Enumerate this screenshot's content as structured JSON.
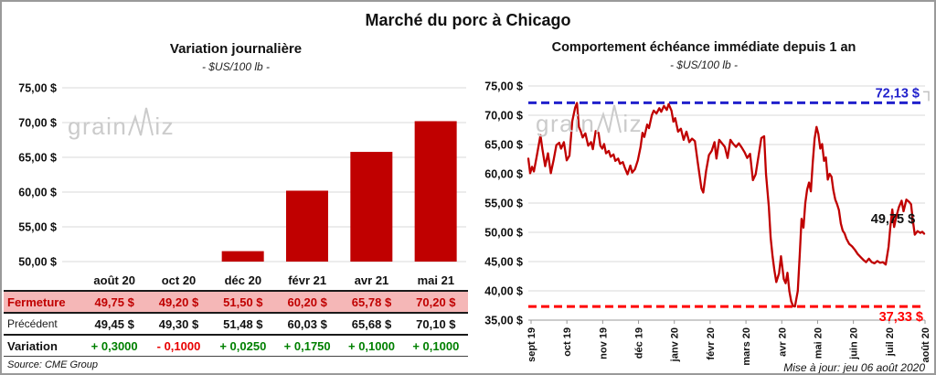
{
  "title": "Marché du porc à Chicago",
  "source": "Source: CME Group",
  "updated": "Mise à jour: jeu 06 août 2020",
  "watermark": {
    "part1": "grain",
    "part2": "iz"
  },
  "colors": {
    "bar": "#C00000",
    "line": "#C00000",
    "high_dash": "#2121CC",
    "low_dash": "#FF0000",
    "grid": "#D8D8D8",
    "axis": "#9a9a9a",
    "pink_row": "#F5B7B7",
    "fermeture_text": "#C00000",
    "positive": "#008000",
    "negative": "#E80000",
    "watermark": "#CBCBCB",
    "text": "#111111"
  },
  "left_table": {
    "col_headers": [
      "août 20",
      "oct 20",
      "déc 20",
      "févr 21",
      "avr 21",
      "mai 21"
    ],
    "rows": [
      {
        "key": "fermeture",
        "label": "Fermeture",
        "values": [
          "49,75 $",
          "49,20 $",
          "51,50 $",
          "60,20 $",
          "65,78 $",
          "70,20 $"
        ]
      },
      {
        "key": "precedent",
        "label": "Précédent",
        "values": [
          "49,45 $",
          "49,30 $",
          "51,48 $",
          "60,03 $",
          "65,68 $",
          "70,10 $"
        ]
      },
      {
        "key": "variation",
        "label": "Variation",
        "values": [
          "+ 0,3000",
          "- 0,1000",
          "+ 0,0250",
          "+ 0,1750",
          "+ 0,1000",
          "+ 0,1000"
        ],
        "value_colors": [
          "positive",
          "negative",
          "positive",
          "positive",
          "positive",
          "positive"
        ]
      }
    ]
  },
  "chart_data": [
    {
      "type": "bar",
      "title": "Variation journalière",
      "subtitle": "- $US/100 lb -",
      "categories": [
        "août 20",
        "oct 20",
        "déc 20",
        "févr 21",
        "avr 21",
        "mai 21"
      ],
      "values": [
        49.75,
        49.2,
        51.5,
        60.2,
        65.78,
        70.2
      ],
      "ylim": [
        50,
        75
      ],
      "yticks": [
        75,
        70,
        65,
        60,
        55,
        50
      ],
      "ytick_labels": [
        "75,00 $",
        "70,00 $",
        "65,00 $",
        "60,00 $",
        "55,00 $",
        "50,00 $"
      ],
      "grid": true,
      "legend": "none"
    },
    {
      "type": "line",
      "title": "Comportement échéance immédiate depuis 1 an",
      "subtitle": "- $US/100 lb -",
      "x_labels": [
        "sept 19",
        "oct 19",
        "nov 19",
        "déc 19",
        "janv 20",
        "févr 20",
        "mars 20",
        "avr 20",
        "mai 20",
        "juin 20",
        "juil 20",
        "août 20"
      ],
      "ylim": [
        35,
        75
      ],
      "yticks": [
        75,
        70,
        65,
        60,
        55,
        50,
        45,
        40,
        35
      ],
      "ytick_labels": [
        "75,00 $",
        "70,00 $",
        "65,00 $",
        "60,00 $",
        "55,00 $",
        "50,00 $",
        "45,00 $",
        "40,00 $",
        "35,00 $"
      ],
      "grid": true,
      "legend": "none",
      "annotations": {
        "high": {
          "value": 72.13,
          "label": "72,13 $"
        },
        "low": {
          "value": 37.33,
          "label": "37,33 $"
        },
        "last": {
          "value": 49.75,
          "label": "49,75 $"
        }
      },
      "points": [
        [
          0,
          62.6
        ],
        [
          2,
          60.1
        ],
        [
          4,
          61.2
        ],
        [
          6,
          60.4
        ],
        [
          9,
          63.0
        ],
        [
          13,
          66.6
        ],
        [
          15,
          64.2
        ],
        [
          18,
          61.3
        ],
        [
          21,
          63.5
        ],
        [
          24,
          60.1
        ],
        [
          27,
          62.3
        ],
        [
          30,
          64.9
        ],
        [
          33,
          65.3
        ],
        [
          35,
          64.3
        ],
        [
          38,
          65.4
        ],
        [
          41,
          62.3
        ],
        [
          44,
          63.1
        ],
        [
          47,
          69.0
        ],
        [
          50,
          71.3
        ],
        [
          52,
          72.1
        ],
        [
          54,
          68.0
        ],
        [
          56,
          67.3
        ],
        [
          58,
          66.2
        ],
        [
          61,
          66.9
        ],
        [
          64,
          64.8
        ],
        [
          67,
          65.4
        ],
        [
          69,
          64.2
        ],
        [
          72,
          67.3
        ],
        [
          75,
          67.0
        ],
        [
          77,
          64.8
        ],
        [
          79,
          64.3
        ],
        [
          81,
          65.1
        ],
        [
          83,
          63.5
        ],
        [
          86,
          63.9
        ],
        [
          88,
          62.9
        ],
        [
          91,
          63.3
        ],
        [
          93,
          62.2
        ],
        [
          96,
          62.6
        ],
        [
          98,
          61.7
        ],
        [
          101,
          62.0
        ],
        [
          103,
          61.1
        ],
        [
          106,
          59.9
        ],
        [
          109,
          61.4
        ],
        [
          111,
          60.2
        ],
        [
          114,
          60.8
        ],
        [
          117,
          62.3
        ],
        [
          120,
          64.6
        ],
        [
          122,
          67.0
        ],
        [
          124,
          66.3
        ],
        [
          127,
          68.4
        ],
        [
          129,
          67.8
        ],
        [
          132,
          70.0
        ],
        [
          134,
          70.8
        ],
        [
          137,
          70.3
        ],
        [
          140,
          71.2
        ],
        [
          142,
          70.6
        ],
        [
          145,
          71.6
        ],
        [
          148,
          70.9
        ],
        [
          150,
          71.9
        ],
        [
          153,
          70.8
        ],
        [
          155,
          68.9
        ],
        [
          157,
          69.5
        ],
        [
          160,
          67.2
        ],
        [
          163,
          67.7
        ],
        [
          166,
          65.8
        ],
        [
          169,
          67.2
        ],
        [
          172,
          65.4
        ],
        [
          175,
          66.0
        ],
        [
          178,
          65.6
        ],
        [
          181,
          62.0
        ],
        [
          185,
          57.5
        ],
        [
          187,
          56.8
        ],
        [
          190,
          60.5
        ],
        [
          193,
          63.2
        ],
        [
          196,
          63.9
        ],
        [
          199,
          65.4
        ],
        [
          201,
          62.6
        ],
        [
          204,
          65.8
        ],
        [
          207,
          65.2
        ],
        [
          210,
          64.6
        ],
        [
          213,
          62.7
        ],
        [
          216,
          65.8
        ],
        [
          219,
          65.1
        ],
        [
          222,
          64.6
        ],
        [
          225,
          65.2
        ],
        [
          228,
          64.5
        ],
        [
          231,
          63.7
        ],
        [
          234,
          62.7
        ],
        [
          237,
          63.4
        ],
        [
          240,
          58.9
        ],
        [
          243,
          59.9
        ],
        [
          246,
          63.0
        ],
        [
          249,
          66.1
        ],
        [
          252,
          66.4
        ],
        [
          254,
          60.0
        ],
        [
          257,
          54.4
        ],
        [
          259,
          49.1
        ],
        [
          261,
          45.9
        ],
        [
          263,
          43.5
        ],
        [
          265,
          41.5
        ],
        [
          268,
          43.0
        ],
        [
          270,
          45.9
        ],
        [
          273,
          42.0
        ],
        [
          275,
          41.3
        ],
        [
          277,
          43.1
        ],
        [
          279,
          39.9
        ],
        [
          281,
          38.2
        ],
        [
          283,
          37.4
        ],
        [
          285,
          37.33
        ],
        [
          288,
          40.0
        ],
        [
          290,
          46.1
        ],
        [
          292,
          52.3
        ],
        [
          294,
          50.8
        ],
        [
          296,
          55.0
        ],
        [
          298,
          57.3
        ],
        [
          300,
          58.5
        ],
        [
          302,
          57.0
        ],
        [
          304,
          62.0
        ],
        [
          306,
          66.0
        ],
        [
          308,
          68.0
        ],
        [
          310,
          66.8
        ],
        [
          312,
          64.3
        ],
        [
          314,
          65.1
        ],
        [
          316,
          62.2
        ],
        [
          318,
          62.8
        ],
        [
          320,
          59.0
        ],
        [
          322,
          60.0
        ],
        [
          324,
          59.5
        ],
        [
          326,
          57.2
        ],
        [
          328,
          55.6
        ],
        [
          330,
          54.8
        ],
        [
          332,
          53.8
        ],
        [
          334,
          51.5
        ],
        [
          336,
          50.3
        ],
        [
          338,
          49.8
        ],
        [
          340,
          48.9
        ],
        [
          343,
          48.0
        ],
        [
          346,
          47.6
        ],
        [
          349,
          47.0
        ],
        [
          352,
          46.3
        ],
        [
          355,
          45.8
        ],
        [
          358,
          45.3
        ],
        [
          361,
          44.9
        ],
        [
          364,
          45.5
        ],
        [
          367,
          44.9
        ],
        [
          370,
          44.7
        ],
        [
          373,
          45.1
        ],
        [
          376,
          44.8
        ],
        [
          379,
          44.9
        ],
        [
          382,
          44.5
        ],
        [
          385,
          47.5
        ],
        [
          387,
          51.0
        ],
        [
          389,
          53.9
        ],
        [
          391,
          50.9
        ],
        [
          393,
          52.5
        ],
        [
          396,
          54.3
        ],
        [
          399,
          55.4
        ],
        [
          401,
          53.6
        ],
        [
          404,
          55.6
        ],
        [
          407,
          55.2
        ],
        [
          409,
          54.8
        ],
        [
          411,
          52.0
        ],
        [
          413,
          49.6
        ],
        [
          416,
          50.2
        ],
        [
          419,
          49.9
        ],
        [
          421,
          50.1
        ],
        [
          423,
          49.76
        ]
      ]
    }
  ]
}
